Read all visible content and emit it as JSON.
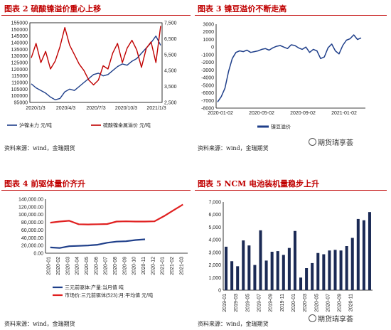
{
  "panels": [
    {
      "title": "图表 2 硫酸镍溢价重心上移",
      "source": "资料来源：wind，金瑞期货",
      "watermark": ""
    },
    {
      "title": "图表 3 镍豆溢价不断走高",
      "source": "资料来源：wind，金瑞期货",
      "watermark": "期货瑞享荟"
    },
    {
      "title": "图表 4 前驱体量价齐升",
      "source": "资料来源：wind，金瑞期货",
      "watermark": ""
    },
    {
      "title": "图表 5 NCM 电池装机量稳步上升",
      "source": "资料来源：wind，金瑞期货",
      "watermark": "期货瑞享荟"
    }
  ],
  "chart_data": [
    {
      "type": "line",
      "x_ticks": [
        "2020/1/3",
        "2020/4/3",
        "2020/7/3",
        "2020/10/3",
        "2021/1/3"
      ],
      "y_left_ticks": [
        "95000",
        "100000",
        "105000",
        "110000",
        "115000",
        "120000",
        "125000",
        "130000",
        "135000",
        "140000",
        "145000",
        "150000",
        "155000"
      ],
      "y_right_ticks": [
        "2,500",
        "3,500",
        "4,500",
        "5,500",
        "6,500",
        "7,500"
      ],
      "ylim_left": [
        95000,
        155000
      ],
      "ylim_right": [
        2500,
        7500
      ],
      "series": [
        {
          "name": "沪镍主力 元/吨",
          "axis": "left",
          "color": "#1f3f8a",
          "values": [
            109000,
            106000,
            104000,
            102000,
            99000,
            97000,
            98000,
            103000,
            105000,
            104000,
            107000,
            110000,
            113000,
            116000,
            117000,
            115000,
            116000,
            119000,
            122000,
            124000,
            123000,
            126000,
            128000,
            132000,
            136000,
            140000,
            145000,
            138000
          ]
        },
        {
          "name": "硫酸镍金属溢价 元/吨",
          "axis": "right",
          "color": "#c00000",
          "values": [
            5300,
            6200,
            5000,
            5700,
            4600,
            5100,
            6000,
            7200,
            6100,
            5500,
            4900,
            4500,
            3900,
            3600,
            3900,
            4800,
            4600,
            5600,
            6200,
            5000,
            5900,
            6400,
            5800,
            4700,
            5900,
            6300,
            5000,
            7300
          ]
        }
      ]
    },
    {
      "type": "line",
      "x_ticks": [
        "2020-01-02",
        "2020-05-02",
        "2020-09-02",
        "2021-01-02"
      ],
      "y_ticks": [
        "-8000",
        "-7000",
        "-6000",
        "-5000",
        "-4000",
        "-3000",
        "-2000",
        "-1000",
        "0",
        "1000",
        "2000",
        "3000"
      ],
      "ylim": [
        -8000,
        3000
      ],
      "series": [
        {
          "name": "镍豆溢价",
          "color": "#1f3f8a",
          "values": [
            -7200,
            -6500,
            -5400,
            -3200,
            -1500,
            -700,
            -500,
            -600,
            -400,
            -700,
            -600,
            -500,
            -300,
            -200,
            -400,
            -100,
            100,
            200,
            0,
            -200,
            300,
            200,
            -100,
            -300,
            0,
            -700,
            -300,
            -500,
            -1500,
            -1300,
            -100,
            400,
            -500,
            -900,
            200,
            900,
            1100,
            1600,
            1000,
            1200
          ]
        }
      ]
    },
    {
      "type": "line",
      "categories": [
        "2020-01",
        "2020-02",
        "2020-03",
        "2020-04",
        "2020-05",
        "2020-06",
        "2020-07",
        "2020-08",
        "2020-09",
        "2020-10",
        "2020-11",
        "2020-12",
        "2021-01",
        "2021-02",
        "2021-03"
      ],
      "y_ticks": [
        "0.00",
        "20,000.00",
        "40,000.00",
        "60,000.00",
        "80,000.00",
        "100,000.00",
        "120,000.00",
        "140,000.00"
      ],
      "ylim": [
        0,
        140000
      ],
      "series": [
        {
          "name": "三元前驱体:产量:当月值 吨",
          "color": "#1f3f8a",
          "values": [
            15000,
            13500,
            18000,
            19000,
            20000,
            22000,
            27000,
            30000,
            31000,
            34000,
            36000,
            null,
            null,
            null,
            null
          ]
        },
        {
          "name": "市场价:三元前驱体(523):月:平均值 元/吨",
          "color": "#e02020",
          "values": [
            79000,
            82000,
            84000,
            75000,
            74500,
            75000,
            75500,
            82000,
            82500,
            82000,
            82000,
            82500,
            96000,
            111000,
            126000
          ]
        }
      ]
    },
    {
      "type": "bar",
      "x_ticks": [
        "2019-01",
        "2019-03",
        "2019-05",
        "2019-07",
        "2019-09",
        "2019-11",
        "2020-01",
        "2020-03",
        "2020-05",
        "2020-07",
        "2020-09",
        "2020-11"
      ],
      "y_ticks": [
        "0",
        "1,000",
        "2,000",
        "3,000",
        "4,000",
        "5,000",
        "6,000",
        "7,000"
      ],
      "ylim": [
        0,
        7000
      ],
      "color": "#1b2a55",
      "values": [
        3450,
        2300,
        1900,
        3950,
        3550,
        2000,
        4750,
        2350,
        3050,
        3100,
        2800,
        3350,
        4700,
        1000,
        1750,
        2150,
        2950,
        2850,
        3150,
        3200,
        3150,
        3500,
        4150,
        5650,
        5550,
        6200
      ]
    }
  ]
}
